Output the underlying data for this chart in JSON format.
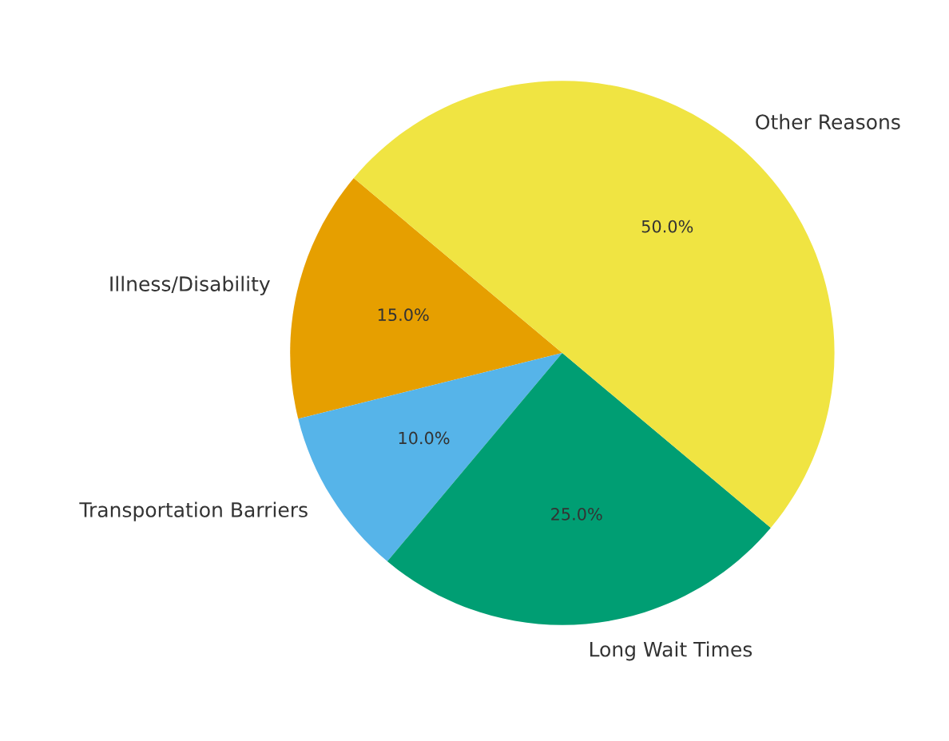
{
  "chart_data": {
    "type": "pie",
    "categories": [
      "Illness/Disability",
      "Transportation Barriers",
      "Long Wait Times",
      "Other Reasons"
    ],
    "values": [
      15,
      10,
      25,
      50
    ],
    "colors": [
      "#e69f00",
      "#56b4e9",
      "#009e73",
      "#f0e442"
    ],
    "value_labels": [
      "15.0%",
      "10.0%",
      "25.0%",
      "50.0%"
    ]
  }
}
